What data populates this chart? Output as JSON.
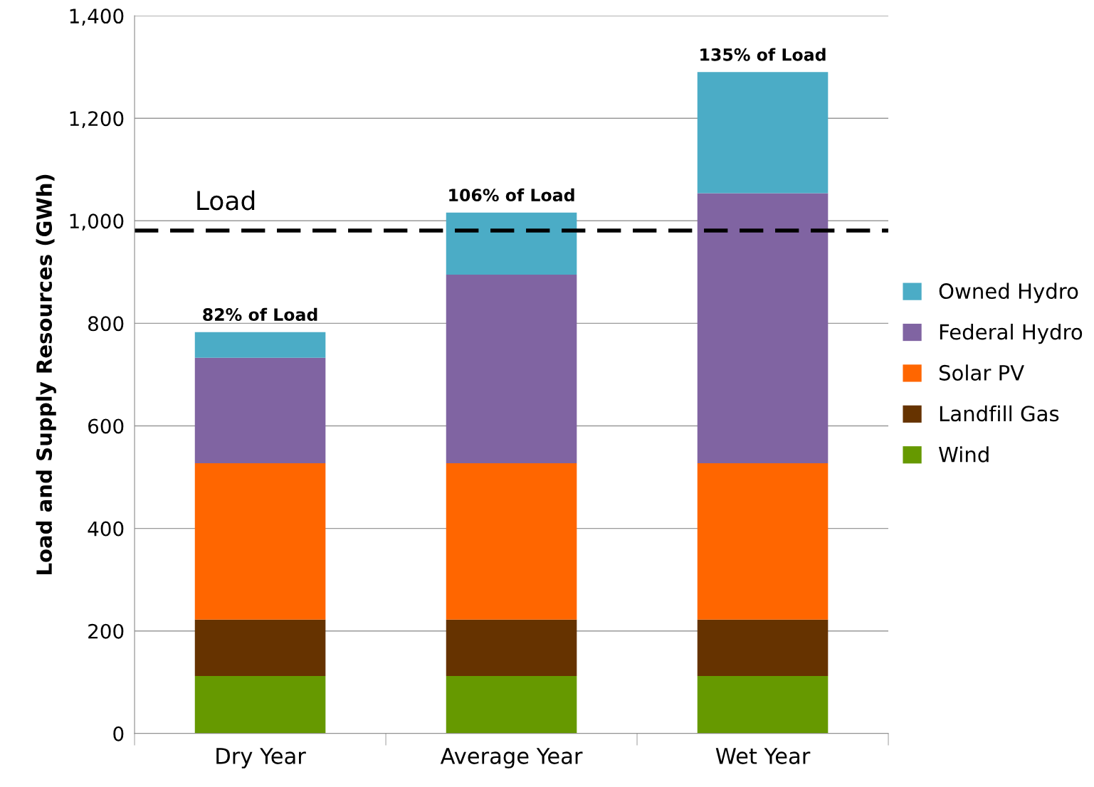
{
  "chart_data": {
    "type": "bar",
    "stacked": true,
    "ylabel": "Load and Supply Resources (GWh)",
    "categories": [
      "Dry Year",
      "Average Year",
      "Wet Year"
    ],
    "series": [
      {
        "name": "Wind",
        "color": "#669900",
        "values": [
          112,
          112,
          112
        ]
      },
      {
        "name": "Landfill Gas",
        "color": "#663300",
        "values": [
          110,
          110,
          110
        ]
      },
      {
        "name": "Solar PV",
        "color": "#ff6600",
        "values": [
          305,
          305,
          305
        ]
      },
      {
        "name": "Federal Hydro",
        "color": "#8064a2",
        "values": [
          206,
          368,
          527
        ]
      },
      {
        "name": "Owned Hydro",
        "color": "#4bacc6",
        "values": [
          50,
          121,
          236
        ]
      }
    ],
    "ylim": [
      0,
      1400
    ],
    "yticks": [
      {
        "value": 0,
        "label": "0"
      },
      {
        "value": 200,
        "label": "200"
      },
      {
        "value": 400,
        "label": "400"
      },
      {
        "value": 600,
        "label": "600"
      },
      {
        "value": 800,
        "label": "800"
      },
      {
        "value": 1000,
        "label": "1,000"
      },
      {
        "value": 1200,
        "label": "1,200"
      },
      {
        "value": 1400,
        "label": "1,400"
      }
    ],
    "grid": "y",
    "legend": "right",
    "ref_lines": [
      {
        "axis": "y",
        "value": 981,
        "label": "Load",
        "color": "#000000",
        "line_style": "dashed"
      }
    ],
    "annotations": [
      {
        "text": "82% of Load",
        "x": "Dry Year",
        "y": 783
      },
      {
        "text": "106% of Load",
        "x": "Average Year",
        "y": 1016
      },
      {
        "text": "135% of Load",
        "x": "Wet Year",
        "y": 1290
      }
    ]
  }
}
